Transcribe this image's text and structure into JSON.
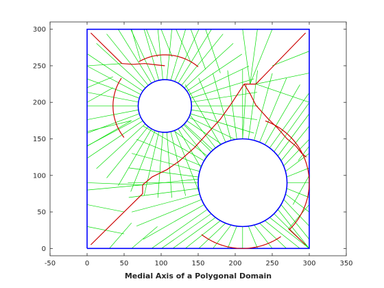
{
  "chart_data": {
    "type": "line",
    "title": "",
    "xlabel": "Medial Axis of a Polygonal Domain",
    "ylabel": "",
    "xlim": [
      -50,
      350
    ],
    "ylim": [
      -10,
      310
    ],
    "xticks": [
      -50,
      0,
      50,
      100,
      150,
      200,
      250,
      300,
      350
    ],
    "yticks": [
      0,
      50,
      100,
      150,
      200,
      250,
      300
    ],
    "grid": false,
    "legend": "none",
    "colors": {
      "boundary": "#0000ff",
      "medial_axis": "#cc0000",
      "spokes": "#00dd00",
      "axes": "#262626"
    },
    "boundary": {
      "square": [
        [
          0,
          0
        ],
        [
          300,
          0
        ],
        [
          300,
          300
        ],
        [
          0,
          300
        ],
        [
          0,
          0
        ]
      ],
      "circles": [
        {
          "cx": 105,
          "cy": 195,
          "r": 36
        },
        {
          "cx": 210,
          "cy": 90,
          "r": 60
        }
      ]
    },
    "medial_axis": {
      "segments": [
        [
          [
            5,
            295
          ],
          [
            47,
            253
          ]
        ],
        [
          [
            5,
            5
          ],
          [
            75,
            75
          ]
        ],
        [
          [
            295,
            295
          ],
          [
            228,
            225
          ]
        ],
        [
          [
            295,
            5
          ],
          [
            272,
            27
          ]
        ],
        [
          [
            75,
            75
          ],
          [
            75,
            87
          ]
        ],
        [
          [
            212,
            225
          ],
          [
            228,
            225
          ]
        ]
      ],
      "arcs": [
        {
          "cx": 105,
          "cy": 195,
          "r": 70,
          "from_deg": 120,
          "to_deg": 50
        },
        {
          "cx": 105,
          "cy": 195,
          "r": 70,
          "from_deg": 147,
          "to_deg": 218
        },
        {
          "cx": 210,
          "cy": 90,
          "r": 90,
          "from_deg": 70,
          "to_deg": -45
        },
        {
          "cx": 210,
          "cy": 90,
          "r": 90,
          "from_deg": 232,
          "to_deg": 305
        }
      ],
      "curves": [
        [
          [
            47,
            253
          ],
          [
            62,
            252
          ],
          [
            78,
            253
          ],
          [
            96,
            251
          ],
          [
            105,
            250
          ]
        ],
        [
          [
            212,
            225
          ],
          [
            220,
            212
          ],
          [
            228,
            196
          ],
          [
            244,
            178
          ],
          [
            258,
            164
          ],
          [
            270,
            150
          ],
          [
            282,
            140
          ],
          [
            290,
            130
          ],
          [
            296,
            125
          ]
        ],
        [
          [
            75,
            87
          ],
          [
            88,
            98
          ],
          [
            108,
            108
          ],
          [
            125,
            120
          ],
          [
            145,
            138
          ],
          [
            162,
            157
          ],
          [
            180,
            177
          ],
          [
            196,
            200
          ],
          [
            212,
            225
          ]
        ]
      ]
    },
    "spokes": {
      "fans": [
        {
          "cx": 105,
          "cy": 195,
          "r": 36,
          "from_deg": 0,
          "to_deg": 360,
          "count": 42,
          "length": 90
        },
        {
          "cx": 210,
          "cy": 90,
          "r": 60,
          "from_deg": 0,
          "to_deg": 360,
          "count": 48,
          "length": 95
        }
      ],
      "lines": [
        [
          [
            0,
            90
          ],
          [
            75,
            87
          ]
        ],
        [
          [
            0,
            80
          ],
          [
            75,
            87
          ]
        ],
        [
          [
            150,
            95
          ],
          [
            75,
            87
          ]
        ],
        [
          [
            0,
            160
          ],
          [
            60,
            175
          ]
        ],
        [
          [
            0,
            140
          ],
          [
            60,
            175
          ]
        ],
        [
          [
            230,
            300
          ],
          [
            220,
            225
          ]
        ],
        [
          [
            210,
            300
          ],
          [
            220,
            225
          ]
        ],
        [
          [
            250,
            300
          ],
          [
            220,
            225
          ]
        ],
        [
          [
            300,
            200
          ],
          [
            228,
            225
          ]
        ],
        [
          [
            300,
            240
          ],
          [
            228,
            225
          ]
        ],
        [
          [
            300,
            270
          ],
          [
            250,
            250
          ]
        ],
        [
          [
            160,
            300
          ],
          [
            180,
            240
          ]
        ],
        [
          [
            140,
            300
          ],
          [
            160,
            245
          ]
        ],
        [
          [
            120,
            300
          ],
          [
            140,
            255
          ]
        ],
        [
          [
            100,
            300
          ],
          [
            115,
            262
          ]
        ],
        [
          [
            80,
            300
          ],
          [
            95,
            262
          ]
        ],
        [
          [
            60,
            300
          ],
          [
            72,
            258
          ]
        ],
        [
          [
            0,
            220
          ],
          [
            35,
            235
          ]
        ],
        [
          [
            0,
            200
          ],
          [
            35,
            220
          ]
        ],
        [
          [
            0,
            250
          ],
          [
            47,
            253
          ]
        ],
        [
          [
            0,
            30
          ],
          [
            50,
            20
          ]
        ],
        [
          [
            30,
            0
          ],
          [
            60,
            35
          ]
        ],
        [
          [
            60,
            0
          ],
          [
            95,
            30
          ]
        ],
        [
          [
            0,
            60
          ],
          [
            50,
            50
          ]
        ],
        [
          [
            300,
            60
          ],
          [
            272,
            27
          ]
        ],
        [
          [
            300,
            100
          ],
          [
            278,
            60
          ]
        ],
        [
          [
            300,
            140
          ],
          [
            285,
            120
          ]
        ],
        [
          [
            210,
            150
          ],
          [
            215,
            225
          ]
        ]
      ]
    }
  }
}
